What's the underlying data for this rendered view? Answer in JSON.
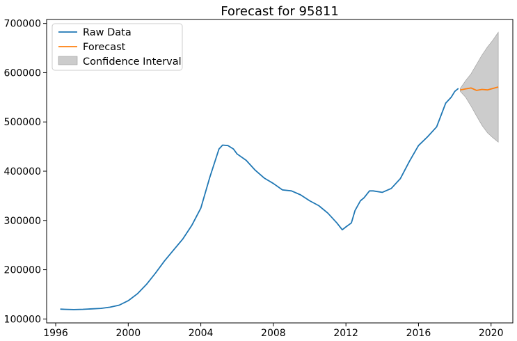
{
  "chart_data": {
    "type": "line",
    "title": "Forecast for 95811",
    "xlabel": "",
    "ylabel": "",
    "xlim": [
      1995.5,
      2021.2
    ],
    "ylim": [
      92000,
      708000
    ],
    "grid": false,
    "legend_position": "top-left",
    "x_ticks": [
      1996,
      2000,
      2004,
      2008,
      2012,
      2016,
      2020
    ],
    "y_ticks": [
      100000,
      200000,
      300000,
      400000,
      500000,
      600000,
      700000
    ],
    "colors": {
      "raw": "#1f77b4",
      "forecast": "#ff7f0e",
      "ci_fill": "#cccccc",
      "ci_edge": "#999999"
    },
    "legend": [
      "Raw Data",
      "Forecast",
      "Confidence Interval"
    ],
    "series": [
      {
        "name": "Raw Data",
        "x": [
          1996.25,
          1996.5,
          1997.0,
          1997.5,
          1998.0,
          1998.5,
          1999.0,
          1999.5,
          2000.0,
          2000.5,
          2001.0,
          2001.5,
          2002.0,
          2002.5,
          2003.0,
          2003.5,
          2004.0,
          2004.5,
          2005.0,
          2005.2,
          2005.5,
          2005.8,
          2006.0,
          2006.5,
          2007.0,
          2007.5,
          2008.0,
          2008.5,
          2009.0,
          2009.5,
          2010.0,
          2010.5,
          2011.0,
          2011.5,
          2011.8,
          2012.0,
          2012.3,
          2012.5,
          2012.8,
          2013.0,
          2013.3,
          2013.5,
          2014.0,
          2014.5,
          2015.0,
          2015.5,
          2016.0,
          2016.5,
          2017.0,
          2017.5,
          2017.8,
          2018.0,
          2018.2
        ],
        "y": [
          120000,
          119500,
          119000,
          119500,
          120500,
          121500,
          124000,
          128000,
          137000,
          151000,
          170000,
          193000,
          218000,
          240000,
          262000,
          290000,
          325000,
          388000,
          445000,
          453000,
          452000,
          445000,
          435000,
          422000,
          402000,
          386000,
          375000,
          362000,
          360000,
          352000,
          340000,
          330000,
          315000,
          295000,
          281000,
          287000,
          295000,
          320000,
          340000,
          346000,
          360000,
          360000,
          357000,
          365000,
          385000,
          420000,
          452000,
          470000,
          490000,
          538000,
          550000,
          562000,
          568000
        ]
      },
      {
        "name": "Forecast",
        "x": [
          2018.3,
          2018.6,
          2018.9,
          2019.2,
          2019.5,
          2019.8,
          2020.1,
          2020.4
        ],
        "y": [
          565000,
          567000,
          569000,
          564000,
          566000,
          565000,
          568000,
          571000
        ]
      },
      {
        "name": "Confidence Interval",
        "x": [
          2018.3,
          2018.6,
          2018.9,
          2019.2,
          2019.5,
          2019.8,
          2020.1,
          2020.4
        ],
        "lower": [
          562000,
          550000,
          532000,
          512000,
          493000,
          478000,
          468000,
          459000
        ],
        "upper": [
          568000,
          584000,
          598000,
          617000,
          636000,
          652000,
          666000,
          682000
        ]
      }
    ]
  }
}
